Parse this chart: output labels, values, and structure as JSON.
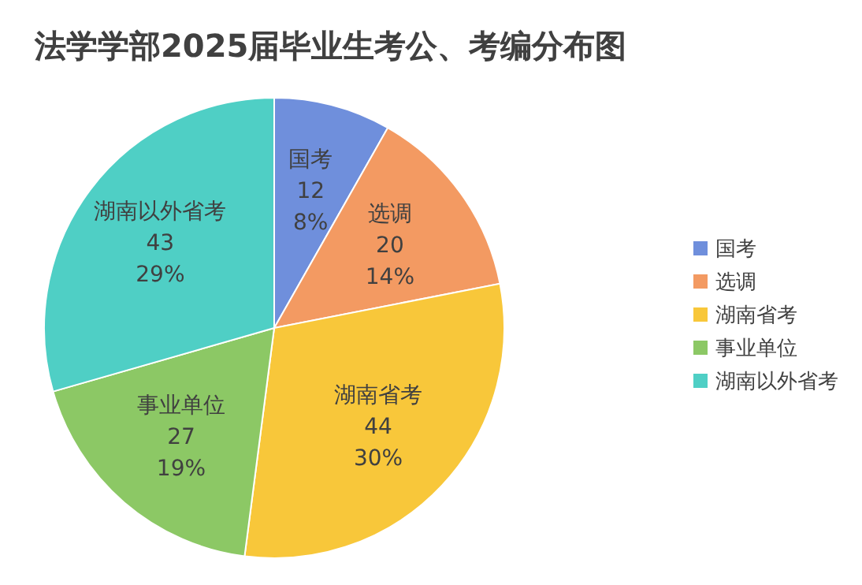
{
  "chart_data": {
    "type": "pie",
    "title": "法学学部2025届毕业生考公、考编分布图",
    "categories": [
      "国考",
      "选调",
      "湖南省考",
      "事业单位",
      "湖南以外省考"
    ],
    "values": [
      12,
      20,
      44,
      27,
      43
    ],
    "data_labels": true,
    "annotations": [
      {
        "text": "8%",
        "x": "国考"
      },
      {
        "text": "14%",
        "x": "选调"
      },
      {
        "text": "30%",
        "x": "湖南省考"
      },
      {
        "text": "19%",
        "x": "事业单位"
      },
      {
        "text": "29%",
        "x": "湖南以外省考"
      }
    ],
    "colors": [
      "#6f8fdc",
      "#f39a62",
      "#f8c73a",
      "#8cc865",
      "#4fcfc5"
    ],
    "legend": "right"
  }
}
